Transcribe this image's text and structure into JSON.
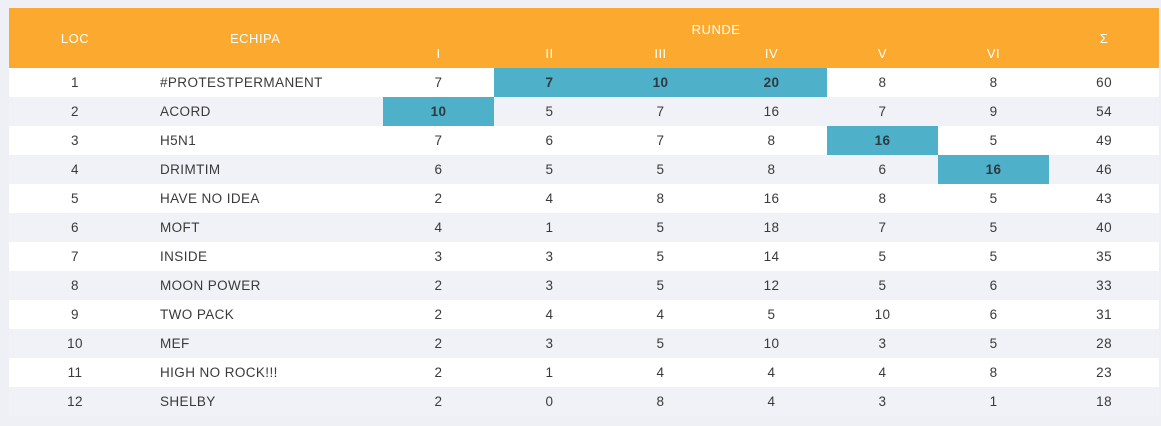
{
  "header": {
    "loc": "LOC",
    "team": "ECHIPA",
    "rounds_title": "RUNDE",
    "rounds": [
      "I",
      "II",
      "III",
      "IV",
      "V",
      "VI"
    ],
    "sum": "Σ"
  },
  "colors": {
    "header_bg": "#fbaa2f",
    "highlight": "#4fb0c9",
    "row_alt": "#f1f2f7"
  },
  "rows": [
    {
      "loc": "1",
      "team": "#PROTESTPERMANENT",
      "r": [
        "7",
        "7",
        "10",
        "20",
        "8",
        "8"
      ],
      "sum": "60",
      "best": [
        1,
        2,
        3
      ]
    },
    {
      "loc": "2",
      "team": "ACORD",
      "r": [
        "10",
        "5",
        "7",
        "16",
        "7",
        "9"
      ],
      "sum": "54",
      "best": [
        0
      ]
    },
    {
      "loc": "3",
      "team": "H5N1",
      "r": [
        "7",
        "6",
        "7",
        "8",
        "16",
        "5"
      ],
      "sum": "49",
      "best": [
        4
      ]
    },
    {
      "loc": "4",
      "team": "DRIMTIM",
      "r": [
        "6",
        "5",
        "5",
        "8",
        "6",
        "16"
      ],
      "sum": "46",
      "best": [
        5
      ]
    },
    {
      "loc": "5",
      "team": "HAVE NO IDEA",
      "r": [
        "2",
        "4",
        "8",
        "16",
        "8",
        "5"
      ],
      "sum": "43",
      "best": []
    },
    {
      "loc": "6",
      "team": "MOFT",
      "r": [
        "4",
        "1",
        "5",
        "18",
        "7",
        "5"
      ],
      "sum": "40",
      "best": []
    },
    {
      "loc": "7",
      "team": "INSIDE",
      "r": [
        "3",
        "3",
        "5",
        "14",
        "5",
        "5"
      ],
      "sum": "35",
      "best": []
    },
    {
      "loc": "8",
      "team": "MOON POWER",
      "r": [
        "2",
        "3",
        "5",
        "12",
        "5",
        "6"
      ],
      "sum": "33",
      "best": []
    },
    {
      "loc": "9",
      "team": "TWO PACK",
      "r": [
        "2",
        "4",
        "4",
        "5",
        "10",
        "6"
      ],
      "sum": "31",
      "best": []
    },
    {
      "loc": "10",
      "team": "MEF",
      "r": [
        "2",
        "3",
        "5",
        "10",
        "3",
        "5"
      ],
      "sum": "28",
      "best": []
    },
    {
      "loc": "11",
      "team": "HIGH NO ROCK!!!",
      "r": [
        "2",
        "1",
        "4",
        "4",
        "4",
        "8"
      ],
      "sum": "23",
      "best": []
    },
    {
      "loc": "12",
      "team": "SHELBY",
      "r": [
        "2",
        "0",
        "8",
        "4",
        "3",
        "1"
      ],
      "sum": "18",
      "best": []
    }
  ]
}
